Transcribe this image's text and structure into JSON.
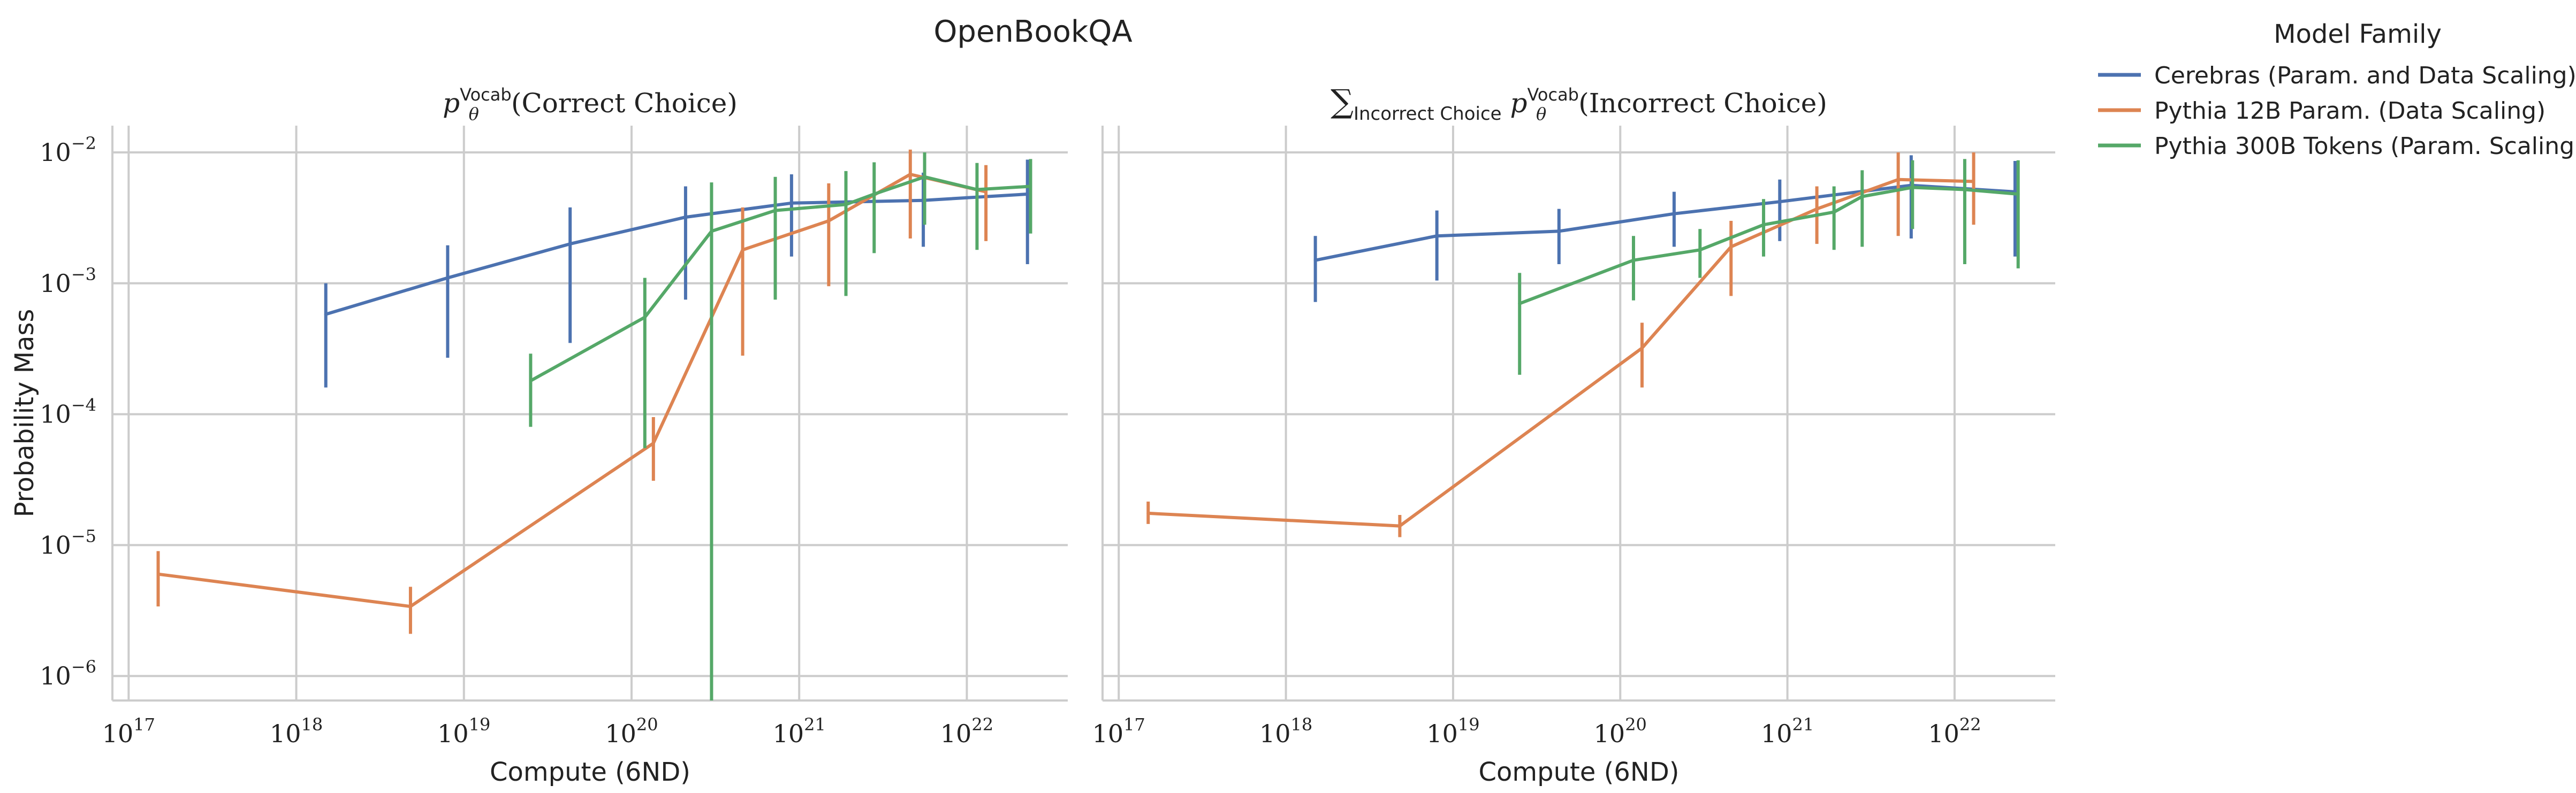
{
  "figure_title": "OpenBookQA",
  "legend": {
    "title": "Model Family",
    "placement": "top-right, outside",
    "entries": [
      {
        "label": "Cerebras (Param. and Data Scaling)",
        "color": "#4c72b0"
      },
      {
        "label": "Pythia 12B Param. (Data Scaling)",
        "color": "#dd8452"
      },
      {
        "label": "Pythia 300B Tokens (Param. Scaling)",
        "color": "#55a868"
      }
    ]
  },
  "chart_data": [
    {
      "type": "line",
      "title": "p_θ^Vocab(Correct Choice)",
      "title_main_left": "p",
      "title_sub": "θ",
      "title_sup": "Vocab",
      "title_main_right": "(Correct Choice)",
      "xlabel": "Compute (6ND)",
      "ylabel": "Probability Mass",
      "xscale": "log",
      "yscale": "log",
      "xlim": [
        8e+16,
        4e+22
      ],
      "ylim": [
        6.5e-07,
        0.016
      ],
      "grid": true,
      "xticks": [
        {
          "value": 1e+17,
          "base": "10",
          "exp": "17"
        },
        {
          "value": 1e+18,
          "base": "10",
          "exp": "18"
        },
        {
          "value": 1e+19,
          "base": "10",
          "exp": "19"
        },
        {
          "value": 1e+20,
          "base": "10",
          "exp": "20"
        },
        {
          "value": 1e+21,
          "base": "10",
          "exp": "21"
        },
        {
          "value": 1e+22,
          "base": "10",
          "exp": "22"
        }
      ],
      "yticks": [
        {
          "value": 1e-06,
          "base": "10",
          "exp": "−6"
        },
        {
          "value": 1e-05,
          "base": "10",
          "exp": "−5"
        },
        {
          "value": 0.0001,
          "base": "10",
          "exp": "−4"
        },
        {
          "value": 0.001,
          "base": "10",
          "exp": "−3"
        },
        {
          "value": 0.01,
          "base": "10",
          "exp": "−2"
        }
      ],
      "series": [
        {
          "name": "Cerebras (Param. and Data Scaling)",
          "color": "#4c72b0",
          "x": [
            1.5e+18,
            8e+18,
            4.3e+19,
            2.1e+20,
            9e+20,
            5.5e+21,
            2.3e+22
          ],
          "y": [
            0.00058,
            0.0011,
            0.002,
            0.0032,
            0.0041,
            0.0043,
            0.0048
          ],
          "ylow": [
            0.00016,
            0.00027,
            0.00035,
            0.00075,
            0.0016,
            0.0019,
            0.0014
          ],
          "yhigh": [
            0.001,
            0.00195,
            0.0038,
            0.0055,
            0.0068,
            0.007,
            0.0088
          ]
        },
        {
          "name": "Pythia 12B Param. (Data Scaling)",
          "color": "#dd8452",
          "x": [
            1.5e+17,
            4.8e+18,
            1.35e+20,
            4.6e+20,
            1.5e+21,
            4.6e+21,
            1.3e+22
          ],
          "y": [
            6e-06,
            3.4e-06,
            6e-05,
            0.0018,
            0.003,
            0.0068,
            0.005
          ],
          "ylow": [
            3.4e-06,
            2.1e-06,
            3.1e-05,
            0.00028,
            0.00095,
            0.0022,
            0.0021
          ],
          "yhigh": [
            9e-06,
            4.8e-06,
            9.5e-05,
            0.0038,
            0.0058,
            0.0105,
            0.008
          ]
        },
        {
          "name": "Pythia 300B Tokens (Param. Scaling)",
          "color": "#55a868",
          "x": [
            2.5e+19,
            1.2e+20,
            3e+20,
            7.2e+20,
            1.9e+21,
            2.8e+21,
            5.6e+21,
            1.15e+22,
            2.4e+22
          ],
          "y": [
            0.00018,
            0.00055,
            0.0025,
            0.0036,
            0.004,
            0.0048,
            0.0065,
            0.0052,
            0.0055
          ],
          "ylow": [
            8e-05,
            5.5e-05,
            6.5e-07,
            0.00075,
            0.0008,
            0.0017,
            0.0028,
            0.0018,
            0.0024
          ],
          "yhigh": [
            0.00029,
            0.0011,
            0.0059,
            0.0065,
            0.0072,
            0.0084,
            0.01,
            0.0083,
            0.0089
          ]
        }
      ]
    },
    {
      "type": "line",
      "title": "∑_Incorrect Choice p_θ^Vocab(Incorrect Choice)",
      "title_sum": "∑",
      "title_sum_sub": "Incorrect Choice",
      "title_main_left": "p",
      "title_sub": "θ",
      "title_sup": "Vocab",
      "title_main_right": "(Incorrect Choice)",
      "xlabel": "Compute (6ND)",
      "ylabel": "",
      "xscale": "log",
      "yscale": "log",
      "xlim": [
        8e+16,
        4e+22
      ],
      "ylim": [
        6.5e-07,
        0.016
      ],
      "grid": true,
      "xticks": [
        {
          "value": 1e+17,
          "base": "10",
          "exp": "17"
        },
        {
          "value": 1e+18,
          "base": "10",
          "exp": "18"
        },
        {
          "value": 1e+19,
          "base": "10",
          "exp": "19"
        },
        {
          "value": 1e+20,
          "base": "10",
          "exp": "20"
        },
        {
          "value": 1e+21,
          "base": "10",
          "exp": "21"
        },
        {
          "value": 1e+22,
          "base": "10",
          "exp": "22"
        }
      ],
      "yticks": [
        {
          "value": 1e-06,
          "base": "",
          "exp": ""
        },
        {
          "value": 1e-05,
          "base": "",
          "exp": ""
        },
        {
          "value": 0.0001,
          "base": "",
          "exp": ""
        },
        {
          "value": 0.001,
          "base": "",
          "exp": ""
        },
        {
          "value": 0.01,
          "base": "",
          "exp": ""
        }
      ],
      "series": [
        {
          "name": "Cerebras (Param. and Data Scaling)",
          "color": "#4c72b0",
          "x": [
            1.5e+18,
            8e+18,
            4.3e+19,
            2.1e+20,
            9e+20,
            5.5e+21,
            2.3e+22
          ],
          "y": [
            0.0015,
            0.0023,
            0.0025,
            0.0034,
            0.0042,
            0.0056,
            0.005
          ],
          "ylow": [
            0.00072,
            0.00105,
            0.0014,
            0.0019,
            0.0021,
            0.0022,
            0.0016
          ],
          "yhigh": [
            0.0023,
            0.0036,
            0.0037,
            0.005,
            0.0062,
            0.0095,
            0.0086
          ]
        },
        {
          "name": "Pythia 12B Param. (Data Scaling)",
          "color": "#dd8452",
          "x": [
            1.5e+17,
            4.8e+18,
            1.35e+20,
            4.6e+20,
            1.5e+21,
            4.6e+21,
            1.3e+22
          ],
          "y": [
            1.75e-05,
            1.4e-05,
            0.00032,
            0.0019,
            0.0037,
            0.0062,
            0.006
          ],
          "ylow": [
            1.45e-05,
            1.15e-05,
            0.00016,
            0.0008,
            0.002,
            0.0023,
            0.0028
          ],
          "yhigh": [
            2.15e-05,
            1.7e-05,
            0.0005,
            0.003,
            0.0055,
            0.01,
            0.01
          ]
        },
        {
          "name": "Pythia 300B Tokens (Param. Scaling)",
          "color": "#55a868",
          "x": [
            2.5e+19,
            1.2e+20,
            3e+20,
            7.2e+20,
            1.9e+21,
            2.8e+21,
            5.6e+21,
            1.15e+22,
            2.4e+22
          ],
          "y": [
            0.0007,
            0.0015,
            0.0018,
            0.0028,
            0.0035,
            0.0046,
            0.0054,
            0.0052,
            0.0048
          ],
          "ylow": [
            0.0002,
            0.00074,
            0.0011,
            0.0016,
            0.0018,
            0.0019,
            0.0026,
            0.0014,
            0.0013
          ],
          "yhigh": [
            0.0012,
            0.0023,
            0.0026,
            0.0044,
            0.0055,
            0.0073,
            0.0087,
            0.0089,
            0.0087
          ]
        }
      ]
    }
  ]
}
